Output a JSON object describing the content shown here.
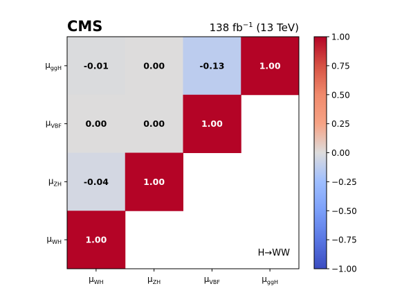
{
  "header": {
    "experiment": "CMS",
    "luminosity_prefix": "138 fb",
    "luminosity_exponent": "−1",
    "luminosity_suffix": " (13 TeV)"
  },
  "chart_data": {
    "type": "heatmap",
    "x_labels": [
      {
        "base": "μ",
        "sub": "WH"
      },
      {
        "base": "μ",
        "sub": "ZH"
      },
      {
        "base": "μ",
        "sub": "VBF"
      },
      {
        "base": "μ",
        "sub": "ggH"
      }
    ],
    "y_labels_top_to_bottom": [
      {
        "base": "μ",
        "sub": "ggH"
      },
      {
        "base": "μ",
        "sub": "VBF"
      },
      {
        "base": "μ",
        "sub": "ZH"
      },
      {
        "base": "μ",
        "sub": "WH"
      }
    ],
    "matrix_top_to_bottom": [
      [
        -0.01,
        0.0,
        -0.13,
        1.0
      ],
      [
        0.0,
        0.0,
        1.0,
        null
      ],
      [
        -0.04,
        1.0,
        null,
        null
      ],
      [
        1.0,
        null,
        null,
        null
      ]
    ],
    "cell_labels_top_to_bottom": [
      [
        "-0.01",
        "0.00",
        "-0.13",
        "1.00"
      ],
      [
        "0.00",
        "0.00",
        "1.00",
        ""
      ],
      [
        "-0.04",
        "1.00",
        "",
        ""
      ],
      [
        "1.00",
        "",
        "",
        ""
      ]
    ],
    "annotation": "H→WW",
    "colorbar": {
      "colormap": "coolwarm",
      "range": [
        -1.0,
        1.0
      ],
      "ticks": [
        "1.00",
        "0.75",
        "0.50",
        "0.25",
        "0.00",
        "−0.25",
        "−0.50",
        "−0.75",
        "−1.00"
      ]
    }
  }
}
